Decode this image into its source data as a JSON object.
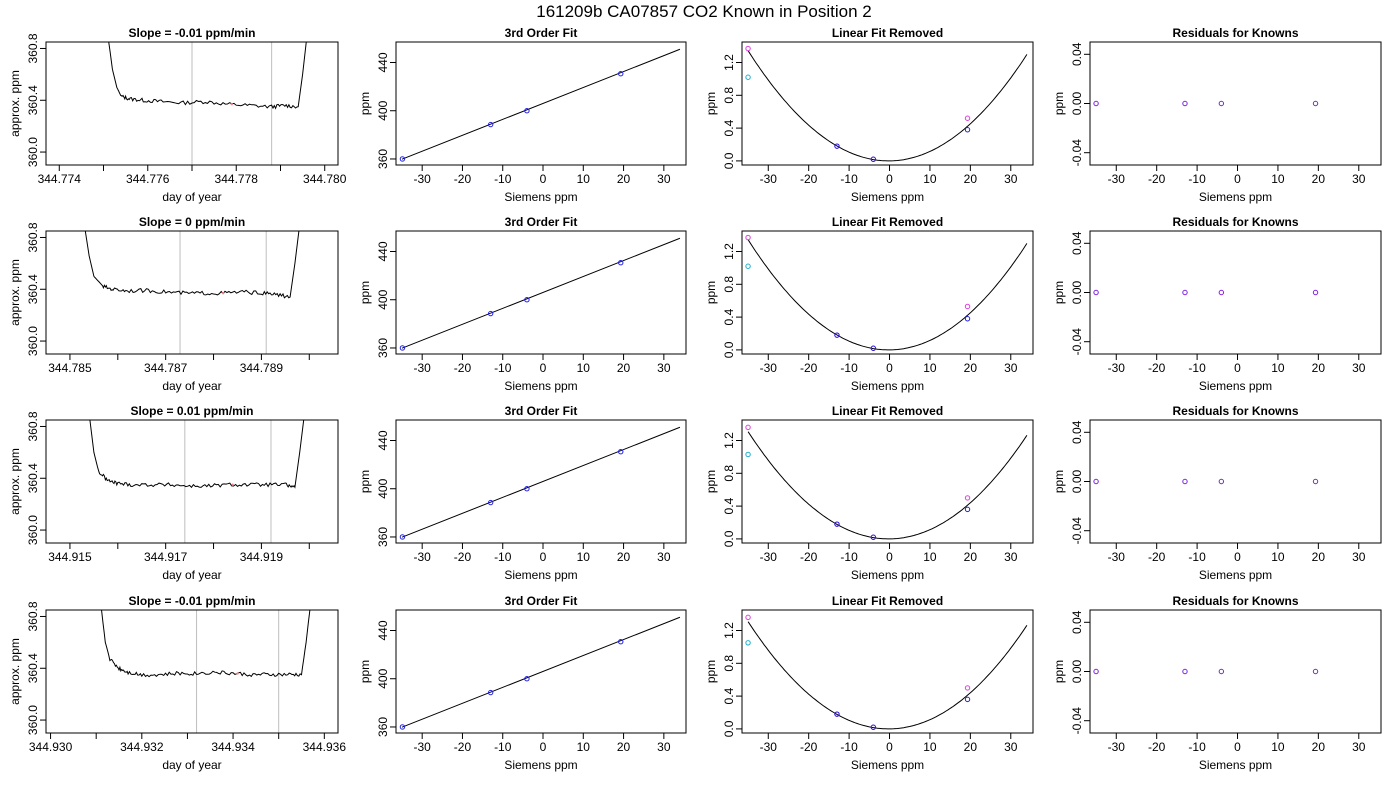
{
  "figure_title": "161209b     CA07857   CO2 Known in Position  2",
  "chart_data": [
    {
      "type": "line",
      "title": "Slope =  -0.01  ppm/min",
      "xlabel": "day of year",
      "ylabel": "approx. ppm",
      "xlim": [
        344.7737,
        344.7803
      ],
      "ylim": [
        359.9,
        360.85
      ],
      "xticks": [
        "344.774",
        "344.776",
        "344.778",
        "344.780"
      ],
      "xtick_values": [
        344.774,
        344.776,
        344.778,
        344.78
      ],
      "yticks": [
        "360.0",
        "360.4",
        "360.8"
      ],
      "ytick_values": [
        360.0,
        360.4,
        360.8
      ],
      "minor_xticks": [
        344.775,
        344.777,
        344.779
      ],
      "window_lines": [
        344.777,
        344.7788
      ],
      "series": [
        {
          "x": [
            344.7751,
            344.7752,
            344.7753,
            344.7754,
            344.7756,
            344.7759,
            344.7763,
            344.7768,
            344.7773,
            344.7778,
            344.7783,
            344.7788,
            344.7791,
            344.7794,
            344.7795,
            344.7796
          ],
          "y": [
            360.9,
            360.64,
            360.5,
            360.43,
            360.41,
            360.4,
            360.39,
            360.38,
            360.39,
            360.37,
            360.36,
            360.35,
            360.36,
            360.35,
            360.6,
            360.9
          ]
        }
      ],
      "marker": {
        "x": 344.7779,
        "y": 360.37
      }
    },
    {
      "type": "scatter",
      "title": "3rd Order Fit",
      "xlabel": "Siemens ppm",
      "ylabel": "ppm",
      "xlim": [
        -36.5,
        35.5
      ],
      "ylim": [
        355,
        457
      ],
      "xticks": [
        "-30",
        "-20",
        "-10",
        "0",
        "10",
        "20",
        "30"
      ],
      "xtick_values": [
        -30,
        -20,
        -10,
        0,
        10,
        20,
        30
      ],
      "yticks": [
        "360",
        "400",
        "440"
      ],
      "ytick_values": [
        360,
        400,
        440
      ],
      "line": {
        "x": [
          -35,
          34
        ],
        "y": [
          359.8,
          451
        ]
      },
      "points": [
        {
          "x": -34.9,
          "y": 360.0
        },
        {
          "x": -13,
          "y": 388.5
        },
        {
          "x": -4,
          "y": 400.0
        },
        {
          "x": 19.3,
          "y": 430.7
        }
      ]
    },
    {
      "type": "scatter",
      "title": "Linear Fit Removed",
      "xlabel": "Siemens ppm",
      "ylabel": "ppm",
      "xlim": [
        -36.5,
        35.5
      ],
      "ylim": [
        -0.05,
        1.45
      ],
      "xticks": [
        "-30",
        "-20",
        "-10",
        "0",
        "10",
        "20",
        "30"
      ],
      "xtick_values": [
        -30,
        -20,
        -10,
        0,
        10,
        20,
        30
      ],
      "yticks": [
        "0.0",
        "0.4",
        "0.8",
        "1.2"
      ],
      "ytick_values": [
        0,
        0.4,
        0.8,
        1.2
      ],
      "curve": {
        "a": 0.00111,
        "x0": -0.2
      },
      "points_magenta": [
        {
          "x": -35,
          "y": 1.37
        },
        {
          "x": -13,
          "y": 0.18
        },
        {
          "x": -4,
          "y": 0.02
        },
        {
          "x": 19.3,
          "y": 0.52
        }
      ],
      "points_blue": [
        {
          "x": -13,
          "y": 0.18
        },
        {
          "x": -4,
          "y": 0.02
        },
        {
          "x": 19.3,
          "y": 0.38
        }
      ],
      "points_cyan": [
        {
          "x": -35,
          "y": 1.02
        }
      ]
    },
    {
      "type": "scatter",
      "title": "Residuals for Knowns",
      "xlabel": "Siemens ppm",
      "ylabel": "ppm",
      "xlim": [
        -36.5,
        35.5
      ],
      "ylim": [
        -0.05,
        0.05
      ],
      "xticks": [
        "-30",
        "-20",
        "-10",
        "0",
        "10",
        "20",
        "30"
      ],
      "xtick_values": [
        -30,
        -20,
        -10,
        0,
        10,
        20,
        30
      ],
      "yticks": [
        "-0.04",
        "0.00",
        "0.04"
      ],
      "ytick_values": [
        -0.04,
        0,
        0.04
      ],
      "points": [
        {
          "x": -35,
          "y": 0
        },
        {
          "x": -13,
          "y": 0
        },
        {
          "x": -4,
          "y": 0
        },
        {
          "x": 19.3,
          "y": 0
        }
      ]
    },
    {
      "type": "line",
      "title": "Slope =  0  ppm/min",
      "xlabel": "day of year",
      "ylabel": "approx. ppm",
      "xlim": [
        344.7845,
        344.7906
      ],
      "ylim": [
        359.9,
        360.85
      ],
      "xticks": [
        "344.785",
        "344.787",
        "344.789"
      ],
      "xtick_values": [
        344.785,
        344.787,
        344.789
      ],
      "yticks": [
        "360.0",
        "360.4",
        "360.8"
      ],
      "ytick_values": [
        360.0,
        360.4,
        360.8
      ],
      "minor_xticks": [
        344.786,
        344.788,
        344.79
      ],
      "window_lines": [
        344.7873,
        344.7891
      ],
      "series": [
        {
          "x": [
            344.7853,
            344.7854,
            344.7855,
            344.7857,
            344.7859,
            344.7862,
            344.7866,
            344.787,
            344.7874,
            344.7878,
            344.7882,
            344.7886,
            344.789,
            344.7893,
            344.7896,
            344.7897,
            344.7898
          ],
          "y": [
            360.9,
            360.66,
            360.5,
            360.42,
            360.4,
            360.39,
            360.39,
            360.38,
            360.37,
            360.37,
            360.37,
            360.38,
            360.37,
            360.36,
            360.34,
            360.6,
            360.9
          ]
        }
      ],
      "marker": {
        "x": 344.7882,
        "y": 360.37
      }
    },
    {
      "type": "scatter",
      "title": "3rd Order Fit",
      "xlabel": "Siemens ppm",
      "ylabel": "ppm",
      "xlim": [
        -36.5,
        35.5
      ],
      "ylim": [
        355,
        457
      ],
      "xticks": [
        "-30",
        "-20",
        "-10",
        "0",
        "10",
        "20",
        "30"
      ],
      "xtick_values": [
        -30,
        -20,
        -10,
        0,
        10,
        20,
        30
      ],
      "yticks": [
        "360",
        "400",
        "440"
      ],
      "ytick_values": [
        360,
        400,
        440
      ],
      "line": {
        "x": [
          -35,
          34
        ],
        "y": [
          359.8,
          451
        ]
      },
      "points": [
        {
          "x": -34.9,
          "y": 360.0
        },
        {
          "x": -13,
          "y": 388.5
        },
        {
          "x": -4,
          "y": 400.0
        },
        {
          "x": 19.3,
          "y": 430.7
        }
      ]
    },
    {
      "type": "scatter",
      "title": "Linear Fit Removed",
      "xlabel": "Siemens ppm",
      "ylabel": "ppm",
      "xlim": [
        -36.5,
        35.5
      ],
      "ylim": [
        -0.05,
        1.45
      ],
      "xticks": [
        "-30",
        "-20",
        "-10",
        "0",
        "10",
        "20",
        "30"
      ],
      "xtick_values": [
        -30,
        -20,
        -10,
        0,
        10,
        20,
        30
      ],
      "yticks": [
        "0.0",
        "0.4",
        "0.8",
        "1.2"
      ],
      "ytick_values": [
        0,
        0.4,
        0.8,
        1.2
      ],
      "curve": {
        "a": 0.00111,
        "x0": -0.2
      },
      "points_magenta": [
        {
          "x": -35,
          "y": 1.37
        },
        {
          "x": -13,
          "y": 0.18
        },
        {
          "x": -4,
          "y": 0.02
        },
        {
          "x": 19.3,
          "y": 0.53
        }
      ],
      "points_blue": [
        {
          "x": -13,
          "y": 0.18
        },
        {
          "x": -4,
          "y": 0.02
        },
        {
          "x": 19.3,
          "y": 0.38
        }
      ],
      "points_cyan": [
        {
          "x": -35,
          "y": 1.02
        }
      ]
    },
    {
      "type": "scatter",
      "title": "Residuals for Knowns",
      "xlabel": "Siemens ppm",
      "ylabel": "ppm",
      "xlim": [
        -36.5,
        35.5
      ],
      "ylim": [
        -0.05,
        0.05
      ],
      "xticks": [
        "-30",
        "-20",
        "-10",
        "0",
        "10",
        "20",
        "30"
      ],
      "xtick_values": [
        -30,
        -20,
        -10,
        0,
        10,
        20,
        30
      ],
      "yticks": [
        "-0.04",
        "0.00",
        "0.04"
      ],
      "ytick_values": [
        -0.04,
        0,
        0.04
      ],
      "points": [
        {
          "x": -35,
          "y": 0
        },
        {
          "x": -13,
          "y": 0
        },
        {
          "x": -4,
          "y": 0
        },
        {
          "x": 19.3,
          "y": 0
        }
      ]
    },
    {
      "type": "line",
      "title": "Slope =  0.01  ppm/min",
      "xlabel": "day of year",
      "ylabel": "approx. ppm",
      "xlim": [
        344.9145,
        344.9206
      ],
      "ylim": [
        359.9,
        360.85
      ],
      "xticks": [
        "344.915",
        "344.917",
        "344.919"
      ],
      "xtick_values": [
        344.915,
        344.917,
        344.919
      ],
      "yticks": [
        "360.0",
        "360.4",
        "360.8"
      ],
      "ytick_values": [
        360.0,
        360.4,
        360.8
      ],
      "minor_xticks": [
        344.916,
        344.918,
        344.92
      ],
      "window_lines": [
        344.9174,
        344.9192
      ],
      "series": [
        {
          "x": [
            344.9154,
            344.9155,
            344.9156,
            344.9158,
            344.916,
            344.9163,
            344.9167,
            344.9171,
            344.9175,
            344.9179,
            344.9183,
            344.9187,
            344.9191,
            344.9195,
            344.9197,
            344.9198,
            344.9199
          ],
          "y": [
            360.9,
            360.6,
            360.45,
            360.38,
            360.36,
            360.35,
            360.35,
            360.35,
            360.34,
            360.34,
            360.35,
            360.35,
            360.35,
            360.35,
            360.33,
            360.6,
            360.9
          ]
        }
      ],
      "marker": {
        "x": 344.9184,
        "y": 360.35
      }
    },
    {
      "type": "scatter",
      "title": "3rd Order Fit",
      "xlabel": "Siemens ppm",
      "ylabel": "ppm",
      "xlim": [
        -36.5,
        35.5
      ],
      "ylim": [
        355,
        457
      ],
      "xticks": [
        "-30",
        "-20",
        "-10",
        "0",
        "10",
        "20",
        "30"
      ],
      "xtick_values": [
        -30,
        -20,
        -10,
        0,
        10,
        20,
        30
      ],
      "yticks": [
        "360",
        "400",
        "440"
      ],
      "ytick_values": [
        360,
        400,
        440
      ],
      "line": {
        "x": [
          -35,
          34
        ],
        "y": [
          359.8,
          451
        ]
      },
      "points": [
        {
          "x": -34.9,
          "y": 360.0
        },
        {
          "x": -13,
          "y": 388.5
        },
        {
          "x": -4,
          "y": 400.0
        },
        {
          "x": 19.3,
          "y": 430.7
        }
      ]
    },
    {
      "type": "scatter",
      "title": "Linear Fit Removed",
      "xlabel": "Siemens ppm",
      "ylabel": "ppm",
      "xlim": [
        -36.5,
        35.5
      ],
      "ylim": [
        -0.05,
        1.45
      ],
      "xticks": [
        "-30",
        "-20",
        "-10",
        "0",
        "10",
        "20",
        "30"
      ],
      "xtick_values": [
        -30,
        -20,
        -10,
        0,
        10,
        20,
        30
      ],
      "yticks": [
        "0.0",
        "0.4",
        "0.8",
        "1.2"
      ],
      "ytick_values": [
        0,
        0.4,
        0.8,
        1.2
      ],
      "curve": {
        "a": 0.00108,
        "x0": -0.2
      },
      "points_magenta": [
        {
          "x": -35,
          "y": 1.36
        },
        {
          "x": -13,
          "y": 0.18
        },
        {
          "x": -4,
          "y": 0.02
        },
        {
          "x": 19.3,
          "y": 0.5
        }
      ],
      "points_blue": [
        {
          "x": -13,
          "y": 0.18
        },
        {
          "x": -4,
          "y": 0.02
        },
        {
          "x": 19.3,
          "y": 0.36
        }
      ],
      "points_cyan": [
        {
          "x": -35,
          "y": 1.03
        }
      ]
    },
    {
      "type": "scatter",
      "title": "Residuals for Knowns",
      "xlabel": "Siemens ppm",
      "ylabel": "ppm",
      "xlim": [
        -36.5,
        35.5
      ],
      "ylim": [
        -0.05,
        0.05
      ],
      "xticks": [
        "-30",
        "-20",
        "-10",
        "0",
        "10",
        "20",
        "30"
      ],
      "xtick_values": [
        -30,
        -20,
        -10,
        0,
        10,
        20,
        30
      ],
      "yticks": [
        "-0.04",
        "0.00",
        "0.04"
      ],
      "ytick_values": [
        -0.04,
        0,
        0.04
      ],
      "points": [
        {
          "x": -35,
          "y": 0
        },
        {
          "x": -13,
          "y": 0
        },
        {
          "x": -4,
          "y": 0
        },
        {
          "x": 19.3,
          "y": 0
        }
      ]
    },
    {
      "type": "line",
      "title": "Slope =  -0.01  ppm/min",
      "xlabel": "day of year",
      "ylabel": "approx. ppm",
      "xlim": [
        344.9299,
        344.9363
      ],
      "ylim": [
        359.9,
        360.85
      ],
      "xticks": [
        "344.930",
        "344.932",
        "344.934",
        "344.936"
      ],
      "xtick_values": [
        344.93,
        344.932,
        344.934,
        344.936
      ],
      "yticks": [
        "360.0",
        "360.4",
        "360.8"
      ],
      "ytick_values": [
        360.0,
        360.4,
        360.8
      ],
      "minor_xticks": [
        344.931,
        344.933,
        344.935
      ],
      "window_lines": [
        344.9332,
        344.935
      ],
      "series": [
        {
          "x": [
            344.9311,
            344.9312,
            344.9313,
            344.9315,
            344.9317,
            344.932,
            344.9324,
            344.9328,
            344.9332,
            344.9336,
            344.934,
            344.9344,
            344.9348,
            344.9352,
            344.9355,
            344.9356,
            344.9357
          ],
          "y": [
            360.9,
            360.6,
            360.47,
            360.4,
            360.37,
            360.35,
            360.35,
            360.36,
            360.36,
            360.37,
            360.36,
            360.35,
            360.35,
            360.35,
            360.35,
            360.6,
            360.9
          ]
        }
      ],
      "marker": {
        "x": 344.9341,
        "y": 360.36
      }
    },
    {
      "type": "scatter",
      "title": "3rd Order Fit",
      "xlabel": "Siemens ppm",
      "ylabel": "ppm",
      "xlim": [
        -36.5,
        35.5
      ],
      "ylim": [
        355,
        457
      ],
      "xticks": [
        "-30",
        "-20",
        "-10",
        "0",
        "10",
        "20",
        "30"
      ],
      "xtick_values": [
        -30,
        -20,
        -10,
        0,
        10,
        20,
        30
      ],
      "yticks": [
        "360",
        "400",
        "440"
      ],
      "ytick_values": [
        360,
        400,
        440
      ],
      "line": {
        "x": [
          -35,
          34
        ],
        "y": [
          359.8,
          451
        ]
      },
      "points": [
        {
          "x": -34.9,
          "y": 360.0
        },
        {
          "x": -13,
          "y": 388.5
        },
        {
          "x": -4,
          "y": 400.0
        },
        {
          "x": 19.3,
          "y": 430.7
        }
      ]
    },
    {
      "type": "scatter",
      "title": "Linear Fit Removed",
      "xlabel": "Siemens ppm",
      "ylabel": "ppm",
      "xlim": [
        -36.5,
        35.5
      ],
      "ylim": [
        -0.05,
        1.45
      ],
      "xticks": [
        "-30",
        "-20",
        "-10",
        "0",
        "10",
        "20",
        "30"
      ],
      "xtick_values": [
        -30,
        -20,
        -10,
        0,
        10,
        20,
        30
      ],
      "yticks": [
        "0.0",
        "0.4",
        "0.8",
        "1.2"
      ],
      "ytick_values": [
        0,
        0.4,
        0.8,
        1.2
      ],
      "curve": {
        "a": 0.00108,
        "x0": -0.2
      },
      "points_magenta": [
        {
          "x": -35,
          "y": 1.36
        },
        {
          "x": -13,
          "y": 0.18
        },
        {
          "x": -4,
          "y": 0.02
        },
        {
          "x": 19.3,
          "y": 0.5
        }
      ],
      "points_blue": [
        {
          "x": -13,
          "y": 0.18
        },
        {
          "x": -4,
          "y": 0.02
        },
        {
          "x": 19.3,
          "y": 0.36
        }
      ],
      "points_cyan": [
        {
          "x": -35,
          "y": 1.05
        }
      ]
    },
    {
      "type": "scatter",
      "title": "Residuals for Knowns",
      "xlabel": "Siemens ppm",
      "ylabel": "ppm",
      "xlim": [
        -36.5,
        35.5
      ],
      "ylim": [
        -0.05,
        0.05
      ],
      "xticks": [
        "-30",
        "-20",
        "-10",
        "0",
        "10",
        "20",
        "30"
      ],
      "xtick_values": [
        -30,
        -20,
        -10,
        0,
        10,
        20,
        30
      ],
      "yticks": [
        "-0.04",
        "0.00",
        "0.04"
      ],
      "ytick_values": [
        -0.04,
        0,
        0.04
      ],
      "points": [
        {
          "x": -35,
          "y": 0
        },
        {
          "x": -13,
          "y": 0
        },
        {
          "x": -4,
          "y": 0
        },
        {
          "x": 19.3,
          "y": 0
        }
      ]
    }
  ],
  "colors": {
    "line": "#000000",
    "window": "#bebebe",
    "magenta": "#e040e0",
    "blue": "#2020e0",
    "cyan": "#20b0d0",
    "residual": "#8020e0",
    "marker": "#ff8080"
  }
}
